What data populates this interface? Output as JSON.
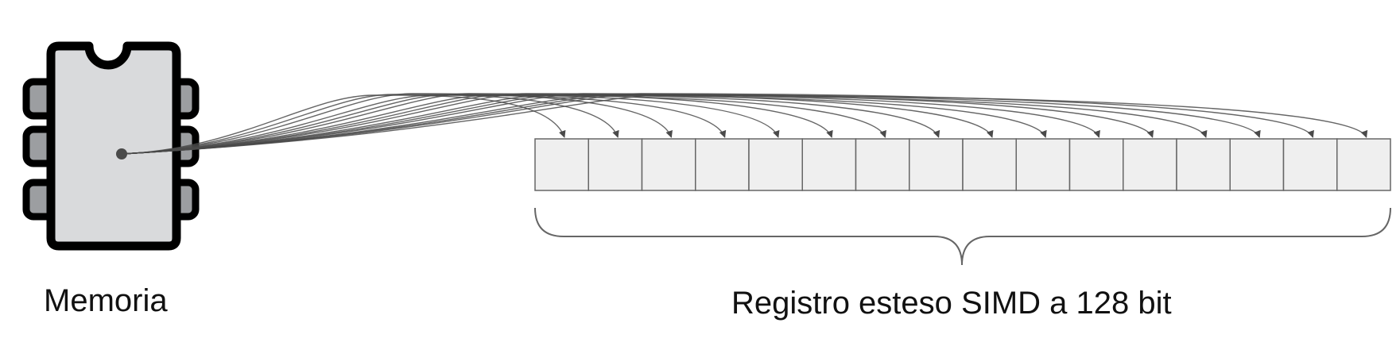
{
  "memory": {
    "label": "Memoria",
    "icon": "memory-chip-icon",
    "body_color": "#d9dadc",
    "pin_color": "#9c9ea1",
    "outline_color": "#000000"
  },
  "register": {
    "label": "Registro esteso SIMD a 128 bit",
    "lanes": 16,
    "cell_color": "#efefef",
    "border_color": "#666666"
  },
  "connections": {
    "count": 16,
    "line_color": "#4a4a4a"
  }
}
